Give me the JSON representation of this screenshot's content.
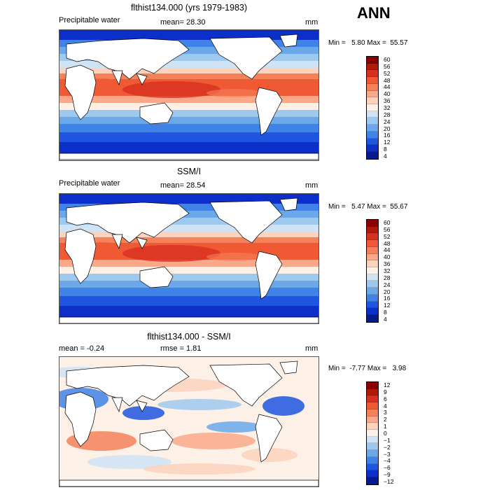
{
  "season": "ANN",
  "panels": [
    {
      "title": "flthist134.000 (yrs 1979-1983)",
      "variable": "Precipitable water",
      "stat_left": "",
      "stat_mid": "mean=  28.30",
      "units": "mm",
      "minmax": "Min =   5.80 Max =  55.57",
      "levels": [
        "60",
        "56",
        "52",
        "48",
        "44",
        "40",
        "36",
        "32",
        "28",
        "24",
        "20",
        "16",
        "12",
        "8",
        "4"
      ],
      "colors": [
        "#8b0000",
        "#b01a0a",
        "#d7301f",
        "#ef5a34",
        "#f4815a",
        "#f9a98a",
        "#fcd2bd",
        "#fdf0e6",
        "#cfe3f5",
        "#9ec9ee",
        "#6aa8ea",
        "#3f83e6",
        "#1f55e0",
        "#0b2fc8",
        "#061c8e"
      ]
    },
    {
      "title": "SSM/I",
      "variable": "Precipitable water",
      "stat_left": "",
      "stat_mid": "mean=  28.54",
      "units": "mm",
      "minmax": "Min =   5.47 Max =  55.67",
      "levels": [
        "60",
        "56",
        "52",
        "48",
        "44",
        "40",
        "36",
        "32",
        "28",
        "24",
        "20",
        "16",
        "12",
        "8",
        "4"
      ],
      "colors": [
        "#8b0000",
        "#b01a0a",
        "#d7301f",
        "#ef5a34",
        "#f4815a",
        "#f9a98a",
        "#fcd2bd",
        "#fdf0e6",
        "#cfe3f5",
        "#9ec9ee",
        "#6aa8ea",
        "#3f83e6",
        "#1f55e0",
        "#0b2fc8",
        "#061c8e"
      ]
    },
    {
      "title": "flthist134.000 - SSM/I",
      "variable": "",
      "stat_left": "mean =   -0.24",
      "stat_mid": "rmse =    1.81",
      "units": "mm",
      "minmax": "Min =  -7.77 Max =   3.98",
      "levels": [
        "12",
        "9",
        "6",
        "4",
        "3",
        "2",
        "1",
        "0",
        "−1",
        "−2",
        "−3",
        "−4",
        "−6",
        "−9",
        "−12"
      ],
      "colors": [
        "#8b0000",
        "#b01a0a",
        "#d7301f",
        "#ef5a34",
        "#f4815a",
        "#f9a98a",
        "#fcd2bd",
        "#fdf0e6",
        "#cfe3f5",
        "#9ec9ee",
        "#6aa8ea",
        "#3f83e6",
        "#1f55e0",
        "#0b2fc8",
        "#061c8e"
      ]
    }
  ]
}
